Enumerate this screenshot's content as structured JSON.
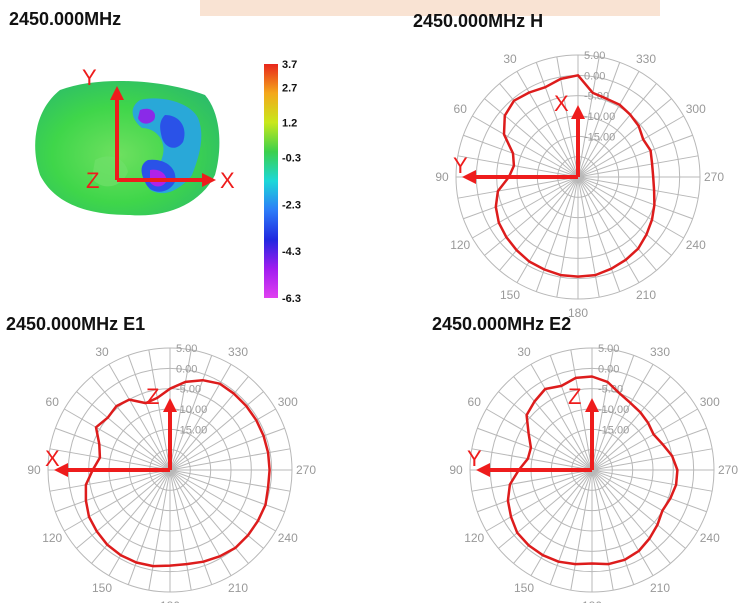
{
  "colors": {
    "trace": "#dd1c1c",
    "axis_arrows": "#ee1c1c",
    "grid": "#b8b8b8",
    "ring_labels": "#999999"
  },
  "panel_3d": {
    "title": "2450.000MHz",
    "axes": {
      "up": "Y",
      "right": "X",
      "origin": "Z"
    },
    "legend": {
      "colors_top_to_bottom": [
        "#e8261c",
        "#f4a81c",
        "#c8e81c",
        "#3cd04c",
        "#1cd8d8",
        "#2c7cf8",
        "#2028e0",
        "#a01cf0",
        "#e040f0"
      ],
      "labels": [
        "3.7",
        "2.7",
        "1.2",
        "-0.3",
        "-2.3",
        "-4.3",
        "-6.3"
      ],
      "levels": [
        3.7,
        2.7,
        1.2,
        -0.3,
        -2.3,
        -4.3,
        -6.3
      ]
    }
  },
  "chart_data": [
    {
      "type": "polar-line",
      "title": "2450.000MHz  H",
      "angle_labels": [
        "30",
        "330",
        "60",
        "300",
        "90",
        "270",
        "120",
        "240",
        "150",
        "210",
        "180"
      ],
      "angle_values": [
        30,
        330,
        60,
        300,
        90,
        270,
        120,
        240,
        150,
        210,
        180
      ],
      "radial_labels": [
        "5.00",
        "0.00",
        "-5.00",
        "-10.00",
        "-15.00"
      ],
      "radial_values": [
        5,
        0,
        -5,
        -10,
        -15
      ],
      "radial_range": [
        -25,
        5
      ],
      "axes": {
        "vertical": "X",
        "horizontal": "Y"
      },
      "series": [
        {
          "angles": [
            0,
            10,
            20,
            30,
            40,
            50,
            60,
            70,
            80,
            90,
            100,
            110,
            120,
            130,
            140,
            150,
            160,
            170,
            180,
            190,
            200,
            210,
            220,
            230,
            240,
            250,
            260,
            270,
            280,
            290,
            300,
            310,
            320,
            330,
            340,
            350,
            360
          ],
          "values": [
            0.0,
            -0.5,
            -1.5,
            -1.0,
            -0.5,
            -1.5,
            -4.0,
            -8.0,
            -9.0,
            -8.0,
            -5.0,
            -3.5,
            -2.5,
            -2.0,
            -1.5,
            -1.0,
            -0.8,
            -0.5,
            -0.5,
            -0.5,
            -1.0,
            -1.5,
            -2.0,
            -3.0,
            -4.0,
            -5.0,
            -6.0,
            -6.5,
            -6.5,
            -6.0,
            -6.5,
            -5.5,
            -5.0,
            -4.5,
            -4.5,
            -4.0,
            0.0
          ]
        }
      ]
    },
    {
      "type": "polar-line",
      "title": "2450.000MHz  E1",
      "angle_labels": [
        "30",
        "330",
        "60",
        "300",
        "90",
        "270",
        "120",
        "240",
        "150",
        "210",
        "180"
      ],
      "angle_values": [
        30,
        330,
        60,
        300,
        90,
        270,
        120,
        240,
        150,
        210,
        180
      ],
      "radial_labels": [
        "5.00",
        "0.00",
        "-5.00",
        "-10.00",
        "-15.00"
      ],
      "radial_values": [
        5,
        0,
        -5,
        -10,
        -15
      ],
      "radial_range": [
        -25,
        5
      ],
      "axes": {
        "vertical": "Z",
        "horizontal": "X"
      },
      "series": [
        {
          "angles": [
            0,
            10,
            20,
            30,
            40,
            50,
            60,
            70,
            80,
            90,
            100,
            110,
            120,
            130,
            140,
            150,
            160,
            170,
            180,
            190,
            200,
            210,
            220,
            230,
            240,
            250,
            260,
            270,
            280,
            290,
            300,
            310,
            320,
            330,
            340,
            350,
            360
          ],
          "values": [
            -5.0,
            -7.0,
            -7.5,
            -5.0,
            -4.5,
            -5.0,
            -4.0,
            -6.5,
            -7.5,
            -6.0,
            -4.0,
            -3.0,
            -2.0,
            -1.5,
            -1.0,
            -0.8,
            -0.8,
            -1.0,
            -1.5,
            -1.5,
            -1.0,
            -0.5,
            0.0,
            0.0,
            0.0,
            0.0,
            -0.5,
            -0.5,
            -0.5,
            -0.5,
            -0.5,
            -0.5,
            -0.5,
            -0.5,
            -1.5,
            -3.0,
            -5.0
          ]
        }
      ]
    },
    {
      "type": "polar-line",
      "title": "2450.000MHz  E2",
      "angle_labels": [
        "30",
        "330",
        "60",
        "300",
        "90",
        "270",
        "120",
        "240",
        "150",
        "210",
        "180"
      ],
      "angle_values": [
        30,
        330,
        60,
        300,
        90,
        270,
        120,
        240,
        150,
        210,
        180
      ],
      "radial_labels": [
        "5.00",
        "0.00",
        "-5.00",
        "-10.00",
        "-15.00"
      ],
      "radial_values": [
        5,
        0,
        -5,
        -10,
        -15
      ],
      "radial_range": [
        -25,
        5
      ],
      "axes": {
        "vertical": "Z",
        "horizontal": "Y"
      },
      "series": [
        {
          "angles": [
            0,
            10,
            20,
            30,
            40,
            50,
            60,
            70,
            80,
            90,
            100,
            110,
            120,
            130,
            140,
            150,
            160,
            170,
            180,
            190,
            200,
            210,
            220,
            230,
            240,
            250,
            260,
            270,
            280,
            290,
            300,
            310,
            320,
            330,
            340,
            350,
            360
          ],
          "values": [
            -2.0,
            -2.0,
            -3.0,
            -2.0,
            -3.0,
            -4.0,
            -7.0,
            -9.0,
            -9.0,
            -7.0,
            -4.5,
            -3.0,
            -2.0,
            -1.0,
            -0.8,
            -0.8,
            -1.0,
            -1.5,
            -2.0,
            -1.5,
            -1.5,
            -2.0,
            -3.0,
            -4.0,
            -5.0,
            -4.5,
            -4.0,
            -4.0,
            -5.0,
            -6.5,
            -7.5,
            -7.0,
            -6.5,
            -6.0,
            -5.0,
            -3.0,
            -2.0
          ]
        }
      ]
    }
  ]
}
